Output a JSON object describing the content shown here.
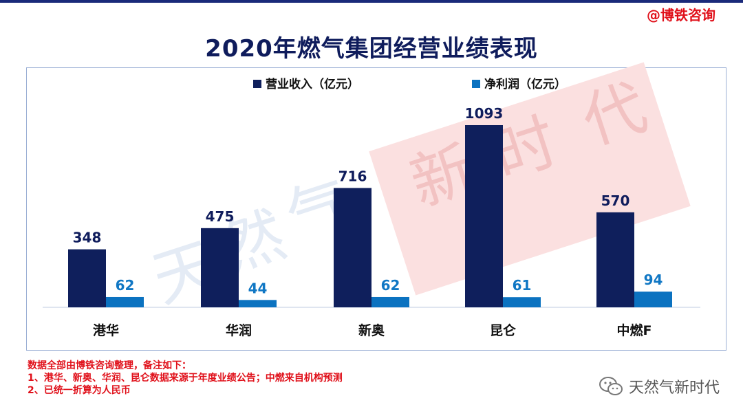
{
  "header": {
    "credit": "@博铁咨询",
    "title": "2020年燃气集团经营业绩表现"
  },
  "chart_data": {
    "type": "bar",
    "title": "2020年燃气集团经营业绩表现",
    "categories": [
      "港华",
      "华润",
      "新奥",
      "昆仑",
      "中燃F"
    ],
    "series": [
      {
        "name": "营业收入（亿元）",
        "values": [
          348,
          475,
          716,
          1093,
          570
        ],
        "color": "#0f1f5c"
      },
      {
        "name": "净利润（亿元）",
        "values": [
          62,
          44,
          62,
          61,
          94
        ],
        "color": "#0b72c0"
      }
    ],
    "ylim": [
      0,
      1130
    ],
    "legend": "top-center",
    "grid": false
  },
  "notes": {
    "line1": "数据全部由博铁咨询整理，备注如下：",
    "line2": "1、港华、新奥、华润、昆仑数据来源于年度业绩公告；中燃来自机构预测",
    "line3": "2、已统一折算为人民币"
  },
  "watermark": {
    "text": "天然气新时代"
  },
  "colors": {
    "revenue": "#0f1f5c",
    "profit": "#0b72c0",
    "red": "#e0101a",
    "title": "#0f1c5c"
  }
}
